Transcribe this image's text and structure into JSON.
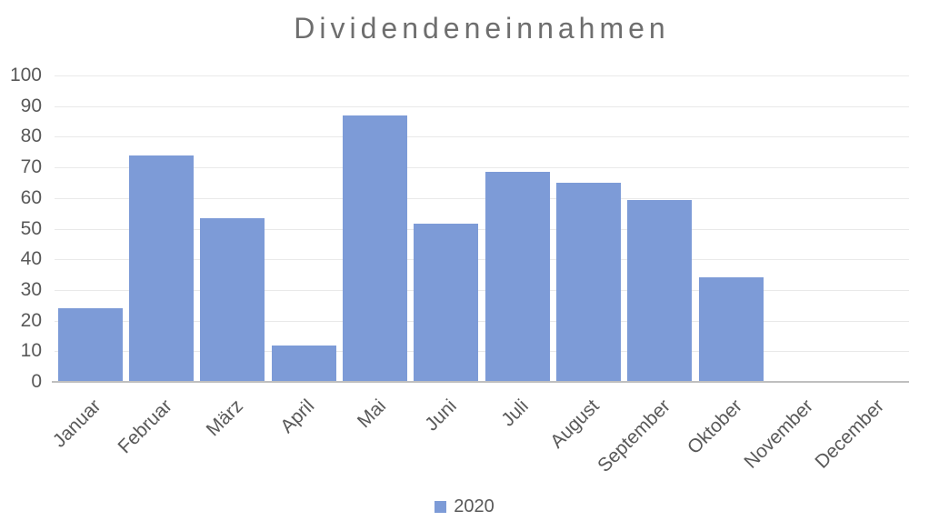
{
  "title": "Dividendeneinnahmen",
  "legend": {
    "items": [
      {
        "label": "2020",
        "color": "#7d9bd7"
      }
    ]
  },
  "colors": {
    "bar": "#7d9bd7",
    "gridline": "#e9e9e9",
    "axis_line": "#bfbfbf",
    "title_text": "#6e6e6e",
    "tick_text": "#595959",
    "background": "#ffffff"
  },
  "chart_data": {
    "type": "bar",
    "title": "Dividendeneinnahmen",
    "categories": [
      "Januar",
      "Februar",
      "März",
      "April",
      "Mai",
      "Juni",
      "Juli",
      "August",
      "September",
      "Oktober",
      "November",
      "December"
    ],
    "series": [
      {
        "name": "2020",
        "color": "#7d9bd7",
        "values": [
          24,
          74,
          53.5,
          12,
          87,
          51.5,
          68.5,
          65,
          59.5,
          34,
          0,
          0
        ]
      }
    ],
    "xlabel": "",
    "ylabel": "",
    "ylim": [
      0,
      100
    ],
    "ytick_step": 10,
    "grid": true,
    "legend_position": "bottom",
    "bar_labels_rotation_deg": -45
  }
}
